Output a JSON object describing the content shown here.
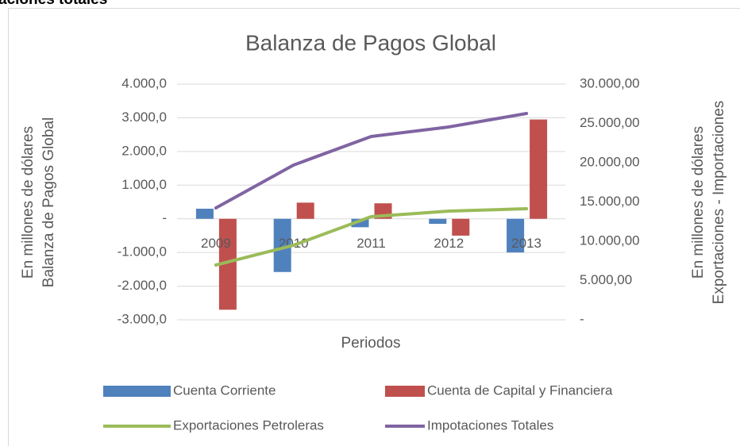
{
  "heading": "aciones totales",
  "chart_data": {
    "type": "bar",
    "title": "Balanza de Pagos Global",
    "xlabel": "Periodos",
    "ylabel": [
      "En  millones de dólares",
      "Balanza de Pagos Global"
    ],
    "y2label": [
      "En millones de dólares",
      "Exportaciones - Importaciones"
    ],
    "categories": [
      "2009",
      "2010",
      "2011",
      "2012",
      "2013"
    ],
    "series": [
      {
        "name": "Cuenta Corriente",
        "color": "#4f81bd",
        "type": "bar",
        "values": [
          300,
          -1580,
          -250,
          -150,
          -1000
        ]
      },
      {
        "name": "Cuenta de Capital y Financiera",
        "color": "#c0504d",
        "type": "bar",
        "values": [
          -2700,
          480,
          460,
          -500,
          2950
        ]
      },
      {
        "name": "Exportaciones Petroleras",
        "color": "#9bbb59",
        "type": "line",
        "axis": "y2",
        "values": [
          6970,
          9490,
          13130,
          13840,
          14140
        ]
      },
      {
        "name": "Impotaciones Totales",
        "color": "#8064a2",
        "type": "line",
        "axis": "y2",
        "values": [
          14240,
          19700,
          23330,
          24550,
          26260
        ]
      }
    ],
    "ylim": [
      -3000,
      4000
    ],
    "yticks": [
      {
        "value": -3000,
        "label": "-3.000,0"
      },
      {
        "value": -2000,
        "label": "-2.000,0"
      },
      {
        "value": -1000,
        "label": "-1.000,0"
      },
      {
        "value": 0,
        "label": "-"
      },
      {
        "value": 1000,
        "label": "1.000,0"
      },
      {
        "value": 2000,
        "label": "2.000,0"
      },
      {
        "value": 3000,
        "label": "3.000,0"
      },
      {
        "value": 4000,
        "label": "4.000,0"
      }
    ],
    "y2lim": [
      0,
      30000
    ],
    "y2ticks": [
      {
        "value": 0,
        "label": "-"
      },
      {
        "value": 5000,
        "label": "5.000,00"
      },
      {
        "value": 10000,
        "label": "10.000,00"
      },
      {
        "value": 15000,
        "label": "15.000,00"
      },
      {
        "value": 20000,
        "label": "20.000,00"
      },
      {
        "value": 25000,
        "label": "25.000,00"
      },
      {
        "value": 30000,
        "label": "30.000,00"
      }
    ],
    "grid": true,
    "legend": "bottom"
  }
}
